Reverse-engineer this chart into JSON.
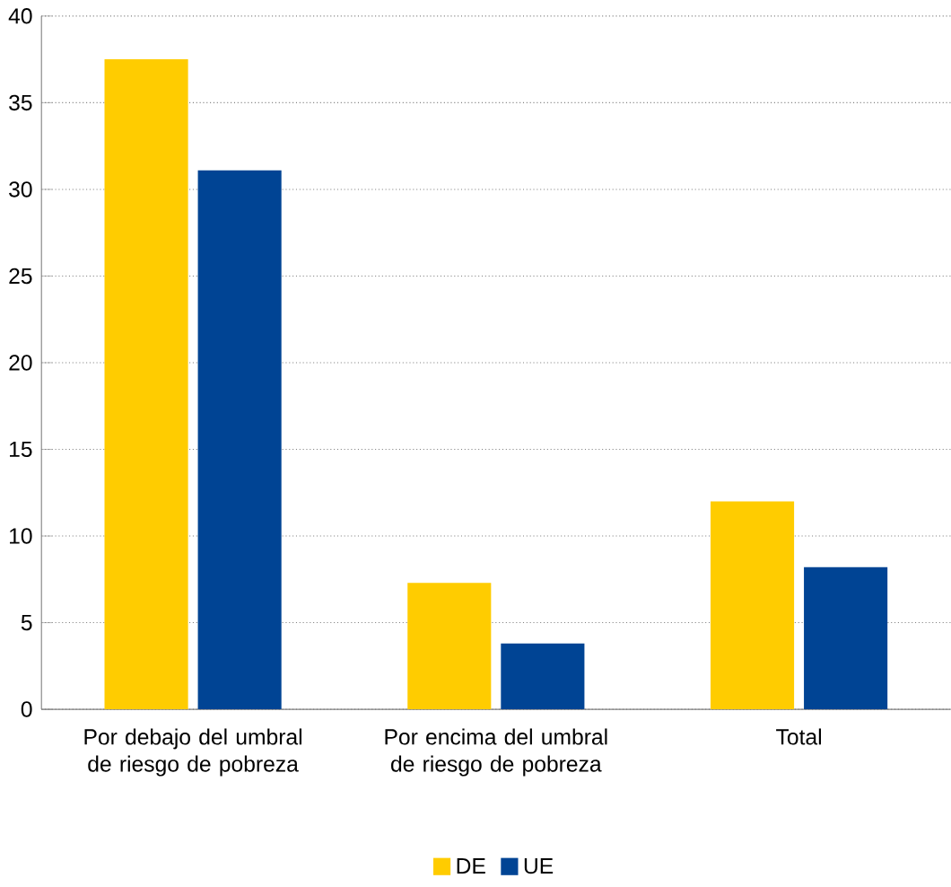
{
  "chart_data": {
    "type": "bar",
    "categories": [
      "Por debajo del umbral de riesgo de pobreza",
      "Por encima del umbral de riesgo de pobreza",
      "Total"
    ],
    "series": [
      {
        "name": "DE",
        "color": "#ffcc00",
        "values": [
          37.5,
          7.3,
          12.0
        ]
      },
      {
        "name": "UE",
        "color": "#004494",
        "values": [
          31.1,
          3.8,
          8.2
        ]
      }
    ],
    "ylim": [
      0,
      40
    ],
    "yticks": [
      0,
      5,
      10,
      15,
      20,
      25,
      30,
      35,
      40
    ],
    "grid": "y",
    "legend": "bottom"
  }
}
